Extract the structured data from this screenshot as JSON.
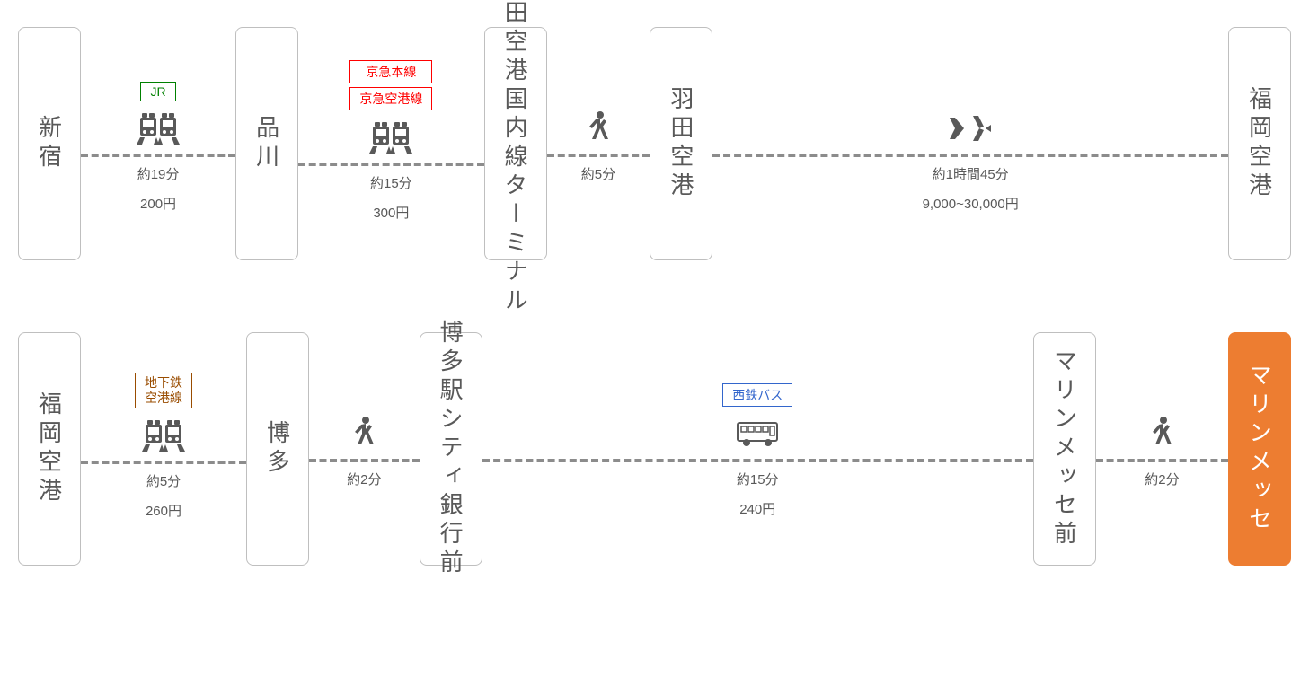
{
  "colors": {
    "jr_border": "#008000",
    "jr_text": "#008000",
    "keikyu_border": "#ff0000",
    "keikyu_text": "#ff0000",
    "subway_border": "#994c00",
    "subway_text": "#994c00",
    "nishitetsu_border": "#3366cc",
    "nishitetsu_text": "#3366cc",
    "destination_bg": "#ed7d31",
    "station_border": "#bfbfbf",
    "text_color": "#595959",
    "connector_color": "#8c8c8c"
  },
  "rows": [
    {
      "stations": [
        "新宿",
        "品川",
        "羽田空港国内線ターミナル",
        "羽田空港",
        "福岡空港"
      ],
      "segments": [
        {
          "lines": [
            {
              "label": "JR",
              "color": "jr"
            }
          ],
          "mode": "train",
          "time": "約19分",
          "fare": "200円",
          "flex": 1.5
        },
        {
          "lines": [
            {
              "label": "京急本線",
              "color": "keikyu"
            },
            {
              "label": "京急空港線",
              "color": "keikyu"
            }
          ],
          "mode": "train",
          "time": "約15分",
          "fare": "300円",
          "flex": 1.8
        },
        {
          "lines": [],
          "mode": "walk",
          "time": "約5分",
          "fare": "",
          "flex": 1
        },
        {
          "lines": [],
          "mode": "plane",
          "time": "約1時間45分",
          "fare": "9,000~30,000円",
          "flex": 5
        }
      ]
    },
    {
      "stations": [
        "福岡空港",
        "博多",
        "博多駅シティ銀行前",
        "マリンメッセ前",
        "マリンメッセ"
      ],
      "destination_index": 4,
      "segments": [
        {
          "lines": [
            {
              "label": "地下鉄空港線",
              "color": "subway",
              "multiline": true
            }
          ],
          "mode": "train",
          "time": "約5分",
          "fare": "260円",
          "flex": 1.5
        },
        {
          "lines": [],
          "mode": "walk",
          "time": "約2分",
          "fare": "",
          "flex": 1
        },
        {
          "lines": [
            {
              "label": "西鉄バス",
              "color": "nishitetsu"
            }
          ],
          "mode": "bus",
          "time": "約15分",
          "fare": "240円",
          "flex": 5
        },
        {
          "lines": [],
          "mode": "walk",
          "time": "約2分",
          "fare": "",
          "flex": 1.2
        }
      ]
    }
  ]
}
